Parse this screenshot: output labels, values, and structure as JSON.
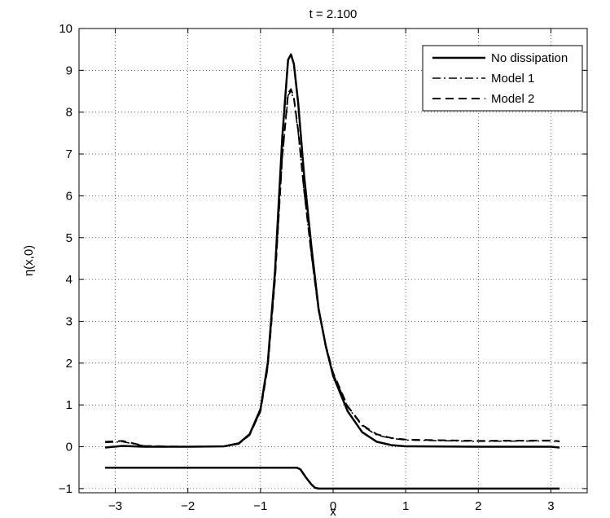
{
  "chart_data": {
    "type": "line",
    "title": "t = 2.100",
    "xlabel": "x",
    "ylabel": "η(x,0)",
    "xlim": [
      -3.5,
      3.5
    ],
    "ylim": [
      -1.1,
      10
    ],
    "xticks": [
      -3,
      -2,
      -1,
      0,
      1,
      2,
      3
    ],
    "xtick_labels": [
      "−3",
      "−2",
      "−1",
      "0",
      "1",
      "2",
      "3"
    ],
    "yticks": [
      -1,
      0,
      1,
      2,
      3,
      4,
      5,
      6,
      7,
      8,
      9,
      10
    ],
    "ytick_labels": [
      "−1",
      "0",
      "1",
      "2",
      "3",
      "4",
      "5",
      "6",
      "7",
      "8",
      "9",
      "10"
    ],
    "grid": true,
    "legend_position": "top-right",
    "series": [
      {
        "name": "No dissipation",
        "style": "solid",
        "points": [
          [
            -3.14,
            -0.02
          ],
          [
            -2.9,
            0.02
          ],
          [
            -2.6,
            0.0
          ],
          [
            -2.0,
            0.0
          ],
          [
            -1.5,
            0.01
          ],
          [
            -1.3,
            0.08
          ],
          [
            -1.15,
            0.3
          ],
          [
            -1.0,
            0.9
          ],
          [
            -0.9,
            2.0
          ],
          [
            -0.8,
            4.2
          ],
          [
            -0.7,
            7.4
          ],
          [
            -0.62,
            9.25
          ],
          [
            -0.58,
            9.38
          ],
          [
            -0.54,
            9.15
          ],
          [
            -0.48,
            8.2
          ],
          [
            -0.4,
            6.5
          ],
          [
            -0.3,
            4.8
          ],
          [
            -0.2,
            3.3
          ],
          [
            -0.1,
            2.4
          ],
          [
            0.0,
            1.7
          ],
          [
            0.2,
            0.85
          ],
          [
            0.4,
            0.35
          ],
          [
            0.6,
            0.12
          ],
          [
            0.8,
            0.04
          ],
          [
            1.0,
            0.01
          ],
          [
            2.0,
            0.0
          ],
          [
            3.0,
            0.0
          ],
          [
            3.12,
            -0.02
          ]
        ]
      },
      {
        "name": "Model 1",
        "style": "dashdot",
        "points": [
          [
            -3.14,
            0.1
          ],
          [
            -2.9,
            0.12
          ],
          [
            -2.6,
            0.02
          ],
          [
            -2.0,
            0.0
          ],
          [
            -1.5,
            0.01
          ],
          [
            -1.3,
            0.07
          ],
          [
            -1.15,
            0.28
          ],
          [
            -1.0,
            0.85
          ],
          [
            -0.9,
            1.9
          ],
          [
            -0.8,
            4.0
          ],
          [
            -0.7,
            6.9
          ],
          [
            -0.62,
            8.4
          ],
          [
            -0.58,
            8.5
          ],
          [
            -0.54,
            8.3
          ],
          [
            -0.48,
            7.5
          ],
          [
            -0.4,
            6.1
          ],
          [
            -0.3,
            4.6
          ],
          [
            -0.2,
            3.25
          ],
          [
            -0.1,
            2.4
          ],
          [
            0.0,
            1.75
          ],
          [
            0.2,
            0.95
          ],
          [
            0.4,
            0.5
          ],
          [
            0.6,
            0.28
          ],
          [
            0.8,
            0.2
          ],
          [
            1.0,
            0.16
          ],
          [
            2.0,
            0.13
          ],
          [
            3.0,
            0.14
          ],
          [
            3.12,
            0.12
          ]
        ]
      },
      {
        "name": "Model 2",
        "style": "dashed",
        "points": [
          [
            -3.14,
            0.12
          ],
          [
            -2.9,
            0.14
          ],
          [
            -2.6,
            0.02
          ],
          [
            -2.0,
            0.0
          ],
          [
            -1.5,
            0.01
          ],
          [
            -1.3,
            0.07
          ],
          [
            -1.15,
            0.28
          ],
          [
            -1.0,
            0.85
          ],
          [
            -0.9,
            1.9
          ],
          [
            -0.8,
            4.0
          ],
          [
            -0.7,
            6.95
          ],
          [
            -0.62,
            8.45
          ],
          [
            -0.58,
            8.55
          ],
          [
            -0.54,
            8.35
          ],
          [
            -0.48,
            7.55
          ],
          [
            -0.4,
            6.15
          ],
          [
            -0.3,
            4.62
          ],
          [
            -0.2,
            3.27
          ],
          [
            -0.1,
            2.42
          ],
          [
            0.0,
            1.77
          ],
          [
            0.2,
            0.97
          ],
          [
            0.4,
            0.52
          ],
          [
            0.6,
            0.3
          ],
          [
            0.8,
            0.21
          ],
          [
            1.0,
            0.17
          ],
          [
            2.0,
            0.14
          ],
          [
            3.0,
            0.15
          ],
          [
            3.12,
            0.13
          ]
        ]
      },
      {
        "name": "",
        "style": "solid",
        "points": [
          [
            -3.14,
            -0.5
          ],
          [
            -0.5,
            -0.5
          ],
          [
            -0.45,
            -0.54
          ],
          [
            -0.38,
            -0.72
          ],
          [
            -0.3,
            -0.9
          ],
          [
            -0.25,
            -0.98
          ],
          [
            -0.2,
            -1.0
          ],
          [
            3.12,
            -1.0
          ]
        ]
      }
    ]
  }
}
